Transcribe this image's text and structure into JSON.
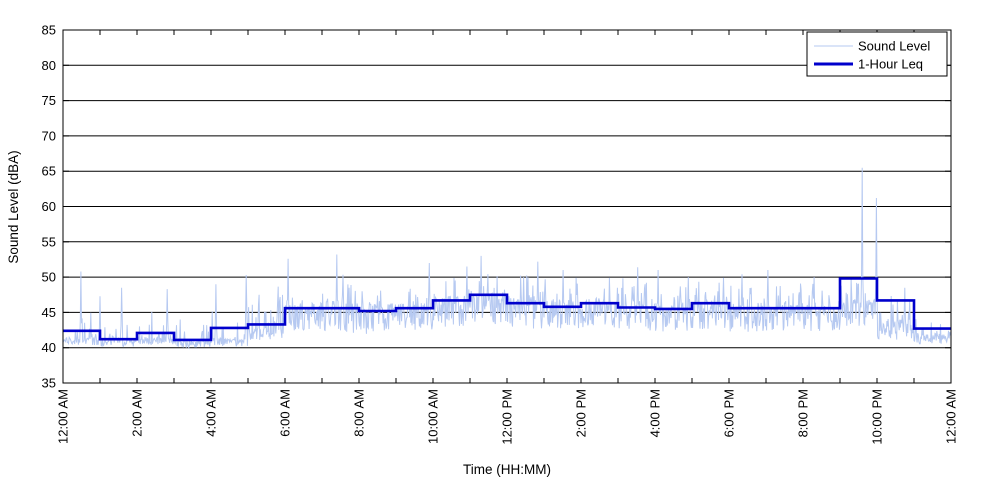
{
  "chart_data": {
    "type": "line",
    "title": "",
    "xlabel": "Time (HH:MM)",
    "ylabel": "Sound Level (dBA)",
    "x_axis": {
      "unit": "hours",
      "range": [
        0,
        24
      ],
      "tick_every_hours": 1,
      "label_every_hours": 2
    },
    "ylim": [
      35,
      85
    ],
    "y_ticks": [
      35,
      40,
      45,
      50,
      55,
      60,
      65,
      70,
      75,
      80,
      85
    ],
    "x_ticklabels": [
      "12:00 AM",
      "2:00 AM",
      "4:00 AM",
      "6:00 AM",
      "8:00 AM",
      "10:00 AM",
      "12:00 PM",
      "2:00 PM",
      "4:00 PM",
      "6:00 PM",
      "8:00 PM",
      "10:00 PM",
      "12:00 AM"
    ],
    "grid": {
      "horizontal": true,
      "vertical": false,
      "color": "#000000"
    },
    "legend": {
      "position": "top-right"
    },
    "series": [
      {
        "name": "Sound Level",
        "kind": "noisy-trace",
        "color": "#b6c9f1",
        "width": 1,
        "samples_per_hour": 60,
        "hourly_profile": [
          {
            "base": 41.0,
            "jitter": 0.6,
            "spike_p": 0.25,
            "spike_max": 5.5
          },
          {
            "base": 40.8,
            "jitter": 0.6,
            "spike_p": 0.25,
            "spike_max": 5.0
          },
          {
            "base": 41.0,
            "jitter": 0.6,
            "spike_p": 0.28,
            "spike_max": 6.0
          },
          {
            "base": 40.6,
            "jitter": 0.6,
            "spike_p": 0.22,
            "spike_max": 6.0
          },
          {
            "base": 40.8,
            "jitter": 0.6,
            "spike_p": 0.25,
            "spike_max": 6.5
          },
          {
            "base": 42.0,
            "jitter": 1.0,
            "spike_p": 0.3,
            "spike_max": 7.0
          },
          {
            "base": 44.3,
            "jitter": 2.2,
            "spike_p": 0.3,
            "spike_max": 4.5
          },
          {
            "base": 44.5,
            "jitter": 2.3,
            "spike_p": 0.3,
            "spike_max": 5.5
          },
          {
            "base": 44.2,
            "jitter": 2.2,
            "spike_p": 0.3,
            "spike_max": 4.5
          },
          {
            "base": 44.8,
            "jitter": 2.2,
            "spike_p": 0.3,
            "spike_max": 5.0
          },
          {
            "base": 45.2,
            "jitter": 2.2,
            "spike_p": 0.3,
            "spike_max": 5.5
          },
          {
            "base": 45.6,
            "jitter": 2.2,
            "spike_p": 0.3,
            "spike_max": 6.0
          },
          {
            "base": 45.0,
            "jitter": 2.2,
            "spike_p": 0.3,
            "spike_max": 5.5
          },
          {
            "base": 44.8,
            "jitter": 2.2,
            "spike_p": 0.3,
            "spike_max": 6.0
          },
          {
            "base": 45.0,
            "jitter": 2.1,
            "spike_p": 0.3,
            "spike_max": 5.0
          },
          {
            "base": 44.6,
            "jitter": 2.1,
            "spike_p": 0.3,
            "spike_max": 5.5
          },
          {
            "base": 44.3,
            "jitter": 2.1,
            "spike_p": 0.3,
            "spike_max": 5.5
          },
          {
            "base": 44.8,
            "jitter": 2.1,
            "spike_p": 0.3,
            "spike_max": 5.0
          },
          {
            "base": 44.3,
            "jitter": 2.0,
            "spike_p": 0.3,
            "spike_max": 5.0
          },
          {
            "base": 44.5,
            "jitter": 2.0,
            "spike_p": 0.3,
            "spike_max": 5.5
          },
          {
            "base": 44.2,
            "jitter": 1.8,
            "spike_p": 0.28,
            "spike_max": 5.0
          },
          {
            "base": 45.0,
            "jitter": 2.0,
            "spike_p": 0.3,
            "spike_max": 5.5
          },
          {
            "base": 42.5,
            "jitter": 1.3,
            "spike_p": 0.3,
            "spike_max": 6.0
          },
          {
            "base": 41.2,
            "jitter": 0.8,
            "spike_p": 0.25,
            "spike_max": 5.0
          }
        ],
        "notable_spikes": [
          {
            "minute": 29,
            "dBA": 50.8
          },
          {
            "minute": 60,
            "dBA": 47.3
          },
          {
            "minute": 95,
            "dBA": 48.5
          },
          {
            "minute": 169,
            "dBA": 48.3
          },
          {
            "minute": 248,
            "dBA": 49.0
          },
          {
            "minute": 297,
            "dBA": 50.3
          },
          {
            "minute": 365,
            "dBA": 52.6
          },
          {
            "minute": 444,
            "dBA": 53.2
          },
          {
            "minute": 594,
            "dBA": 52.0
          },
          {
            "minute": 655,
            "dBA": 51.5
          },
          {
            "minute": 678,
            "dBA": 53.0
          },
          {
            "minute": 770,
            "dBA": 52.2
          },
          {
            "minute": 811,
            "dBA": 51.0
          },
          {
            "minute": 932,
            "dBA": 51.4
          },
          {
            "minute": 965,
            "dBA": 51.0
          },
          {
            "minute": 1014,
            "dBA": 50.0
          },
          {
            "minute": 1101,
            "dBA": 50.4
          },
          {
            "minute": 1143,
            "dBA": 51.0
          },
          {
            "minute": 1218,
            "dBA": 50.0
          },
          {
            "minute": 1296,
            "dBA": 65.5
          },
          {
            "minute": 1319,
            "dBA": 61.2
          },
          {
            "minute": 1365,
            "dBA": 48.5
          }
        ],
        "value_floor_dBA": 39.6
      },
      {
        "name": "1-Hour Leq",
        "kind": "step",
        "color": "#0000cc",
        "width": 2.6,
        "hourly_leq_dBA": [
          42.4,
          41.2,
          42.1,
          41.1,
          42.8,
          43.3,
          45.6,
          45.6,
          45.2,
          45.6,
          46.7,
          47.5,
          46.3,
          45.8,
          46.3,
          45.7,
          45.5,
          46.3,
          45.6,
          45.6,
          45.6,
          49.8,
          46.7,
          42.7
        ]
      }
    ]
  }
}
